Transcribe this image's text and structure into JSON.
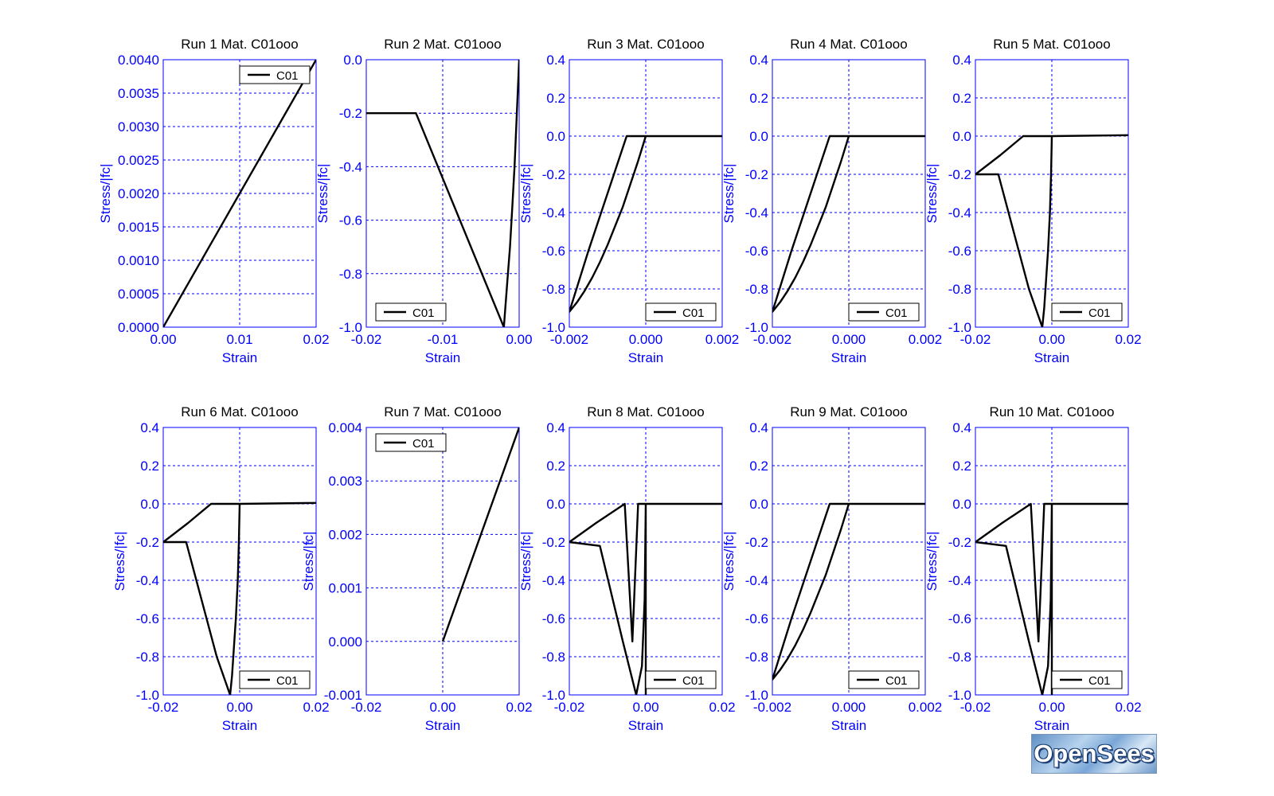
{
  "chart_data": [
    {
      "type": "line",
      "title": "Run 1   Mat. C01ooo",
      "xlabel": "Strain",
      "ylabel": "Stress/|fc|",
      "xlim": [
        0,
        0.02
      ],
      "ylim": [
        0,
        0.004
      ],
      "xticks": [
        "0.00",
        "0.01",
        "0.02"
      ],
      "yticks": [
        "0.0000",
        "0.0005",
        "0.0010",
        "0.0015",
        "0.0020",
        "0.0025",
        "0.0030",
        "0.0035",
        "0.0040"
      ],
      "grid": true,
      "legend": "top-right",
      "series": [
        {
          "name": "C01",
          "x": [
            0,
            0.02
          ],
          "y": [
            0,
            0.004
          ]
        }
      ]
    },
    {
      "type": "line",
      "title": "Run 2   Mat. C01ooo",
      "xlabel": "Strain",
      "ylabel": "Stress/|fc|",
      "xlim": [
        -0.02,
        0
      ],
      "ylim": [
        -1.0,
        0
      ],
      "xticks": [
        "-0.02",
        "-0.01",
        "0.00"
      ],
      "yticks": [
        "-1.0",
        "-0.8",
        "-0.6",
        "-0.4",
        "-0.2",
        "0.0"
      ],
      "grid": true,
      "legend": "bottom-left",
      "series": [
        {
          "name": "C01",
          "x": [
            -0.02,
            -0.0135,
            -0.002,
            -0.0016,
            -0.0012,
            -0.0009,
            -0.0006,
            -0.0003,
            0
          ],
          "y": [
            -0.2,
            -0.2,
            -1.0,
            -0.85,
            -0.7,
            -0.55,
            -0.4,
            -0.2,
            0
          ]
        }
      ]
    },
    {
      "type": "line",
      "title": "Run 3   Mat. C01ooo",
      "xlabel": "Strain",
      "ylabel": "Stress/|fc|",
      "xlim": [
        -0.002,
        0.002
      ],
      "ylim": [
        -1.0,
        0.4
      ],
      "xticks": [
        "-0.002",
        "0.000",
        "0.002"
      ],
      "yticks": [
        "-1.0",
        "-0.8",
        "-0.6",
        "-0.4",
        "-0.2",
        "0.0",
        "0.2",
        "0.4"
      ],
      "grid": true,
      "legend": "bottom-right",
      "series": [
        {
          "name": "C01",
          "x": [
            0.002,
            0,
            -0.0002,
            -0.0004,
            -0.0006,
            -0.0008,
            -0.001,
            -0.0012,
            -0.0014,
            -0.0016,
            -0.0018,
            -0.002,
            -0.0015,
            -0.001,
            -0.0005,
            0
          ],
          "y": [
            0,
            0,
            -0.13,
            -0.25,
            -0.37,
            -0.47,
            -0.57,
            -0.66,
            -0.74,
            -0.81,
            -0.87,
            -0.92,
            -0.6,
            -0.3,
            0,
            0
          ]
        }
      ]
    },
    {
      "type": "line",
      "title": "Run 4   Mat. C01ooo",
      "xlabel": "Strain",
      "ylabel": "Stress/|fc|",
      "xlim": [
        -0.002,
        0.002
      ],
      "ylim": [
        -1.0,
        0.4
      ],
      "xticks": [
        "-0.002",
        "0.000",
        "0.002"
      ],
      "yticks": [
        "-1.0",
        "-0.8",
        "-0.6",
        "-0.4",
        "-0.2",
        "0.0",
        "0.2",
        "0.4"
      ],
      "grid": true,
      "legend": "bottom-right",
      "series": [
        {
          "name": "C01",
          "x": [
            0.002,
            0,
            -0.0002,
            -0.0004,
            -0.0006,
            -0.0008,
            -0.001,
            -0.0012,
            -0.0014,
            -0.0016,
            -0.0018,
            -0.002,
            -0.0015,
            -0.001,
            -0.0005,
            0
          ],
          "y": [
            0,
            0,
            -0.13,
            -0.25,
            -0.37,
            -0.47,
            -0.57,
            -0.66,
            -0.74,
            -0.81,
            -0.87,
            -0.92,
            -0.6,
            -0.3,
            0,
            0
          ]
        }
      ]
    },
    {
      "type": "line",
      "title": "Run 5   Mat. C01ooo",
      "xlabel": "Strain",
      "ylabel": "Stress/|fc|",
      "xlim": [
        -0.02,
        0.02
      ],
      "ylim": [
        -1.0,
        0.4
      ],
      "xticks": [
        "-0.02",
        "0.00",
        "0.02"
      ],
      "yticks": [
        "-1.0",
        "-0.8",
        "-0.6",
        "-0.4",
        "-0.2",
        "0.0",
        "0.2",
        "0.4"
      ],
      "grid": true,
      "legend": "bottom-right",
      "series": [
        {
          "name": "C01",
          "x": [
            0.02,
            0,
            -0.0002,
            -0.0005,
            -0.001,
            -0.0015,
            -0.002,
            -0.0025,
            -0.006,
            -0.014,
            -0.02,
            -0.0135,
            -0.0075,
            0,
            0.02
          ],
          "y": [
            0.005,
            0,
            -0.2,
            -0.4,
            -0.6,
            -0.75,
            -0.9,
            -1.0,
            -0.8,
            -0.2,
            -0.2,
            -0.1,
            0,
            0,
            0.005
          ]
        }
      ]
    },
    {
      "type": "line",
      "title": "Run 6   Mat. C01ooo",
      "xlabel": "Strain",
      "ylabel": "Stress/|fc|",
      "xlim": [
        -0.02,
        0.02
      ],
      "ylim": [
        -1.0,
        0.4
      ],
      "xticks": [
        "-0.02",
        "0.00",
        "0.02"
      ],
      "yticks": [
        "-1.0",
        "-0.8",
        "-0.6",
        "-0.4",
        "-0.2",
        "0.0",
        "0.2",
        "0.4"
      ],
      "grid": true,
      "legend": "bottom-right",
      "series": [
        {
          "name": "C01",
          "x": [
            0.02,
            0,
            -0.0002,
            -0.0005,
            -0.001,
            -0.0015,
            -0.002,
            -0.0025,
            -0.006,
            -0.014,
            -0.02,
            -0.0135,
            -0.0075,
            0,
            0.02
          ],
          "y": [
            0.005,
            0,
            -0.2,
            -0.4,
            -0.6,
            -0.75,
            -0.9,
            -1.0,
            -0.8,
            -0.2,
            -0.2,
            -0.1,
            0,
            0,
            0.005
          ]
        }
      ]
    },
    {
      "type": "line",
      "title": "Run 7   Mat. C01ooo",
      "xlabel": "Strain",
      "ylabel": "Stress/|fc|",
      "xlim": [
        -0.02,
        0.02
      ],
      "ylim": [
        -0.001,
        0.004
      ],
      "xticks": [
        "-0.02",
        "0.00",
        "0.02"
      ],
      "yticks": [
        "-0.001",
        "0.000",
        "0.001",
        "0.002",
        "0.003",
        "0.004"
      ],
      "grid": true,
      "legend": "top-left",
      "series": [
        {
          "name": "C01",
          "x": [
            0,
            0.02
          ],
          "y": [
            0,
            0.004
          ]
        }
      ]
    },
    {
      "type": "line",
      "title": "Run 8   Mat. C01ooo",
      "xlabel": "Strain",
      "ylabel": "Stress/|fc|",
      "xlim": [
        -0.02,
        0.02
      ],
      "ylim": [
        -1.0,
        0.4
      ],
      "xticks": [
        "-0.02",
        "0.00",
        "0.02"
      ],
      "yticks": [
        "-1.0",
        "-0.8",
        "-0.6",
        "-0.4",
        "-0.2",
        "0.0",
        "0.2",
        "0.4"
      ],
      "grid": true,
      "legend": "bottom-right",
      "series": [
        {
          "name": "C01",
          "x": [
            0.02,
            0,
            -0.0003,
            -0.001,
            -0.0025,
            -0.006,
            -0.012,
            -0.02,
            -0.013,
            -0.0055,
            -0.0035,
            -0.002,
            0,
            0
          ],
          "y": [
            0,
            0,
            -0.5,
            -0.85,
            -1.0,
            -0.72,
            -0.22,
            -0.2,
            -0.1,
            0,
            -0.72,
            0,
            0,
            -1.0
          ]
        }
      ]
    },
    {
      "type": "line",
      "title": "Run 9   Mat. C01ooo",
      "xlabel": "Strain",
      "ylabel": "Stress/|fc|",
      "xlim": [
        -0.002,
        0.002
      ],
      "ylim": [
        -1.0,
        0.4
      ],
      "xticks": [
        "-0.002",
        "0.000",
        "0.002"
      ],
      "yticks": [
        "-1.0",
        "-0.8",
        "-0.6",
        "-0.4",
        "-0.2",
        "0.0",
        "0.2",
        "0.4"
      ],
      "grid": true,
      "legend": "bottom-right",
      "series": [
        {
          "name": "C01",
          "x": [
            0.002,
            0,
            -0.0002,
            -0.0004,
            -0.0006,
            -0.0008,
            -0.001,
            -0.0012,
            -0.0014,
            -0.0016,
            -0.0018,
            -0.002,
            -0.0015,
            -0.001,
            -0.0005,
            0
          ],
          "y": [
            0,
            0,
            -0.13,
            -0.25,
            -0.37,
            -0.47,
            -0.57,
            -0.66,
            -0.74,
            -0.81,
            -0.87,
            -0.92,
            -0.6,
            -0.3,
            0,
            0
          ]
        }
      ]
    },
    {
      "type": "line",
      "title": "Run 10   Mat. C01ooo",
      "xlabel": "Strain",
      "ylabel": "Stress/|fc|",
      "xlim": [
        -0.02,
        0.02
      ],
      "ylim": [
        -1.0,
        0.4
      ],
      "xticks": [
        "-0.02",
        "0.00",
        "0.02"
      ],
      "yticks": [
        "-1.0",
        "-0.8",
        "-0.6",
        "-0.4",
        "-0.2",
        "0.0",
        "0.2",
        "0.4"
      ],
      "grid": true,
      "legend": "bottom-right",
      "series": [
        {
          "name": "C01",
          "x": [
            0.02,
            0,
            -0.0003,
            -0.001,
            -0.0025,
            -0.006,
            -0.012,
            -0.02,
            -0.013,
            -0.0055,
            -0.0035,
            -0.002,
            0,
            0
          ],
          "y": [
            0,
            0,
            -0.5,
            -0.85,
            -1.0,
            -0.72,
            -0.22,
            -0.2,
            -0.1,
            0,
            -0.72,
            0,
            0,
            -1.0
          ]
        }
      ]
    }
  ],
  "colors": {
    "axis": "#0000ff",
    "grid": "#0000ff",
    "series": "#000000",
    "title": "#000000"
  },
  "logo": {
    "text": "OpenSees"
  }
}
